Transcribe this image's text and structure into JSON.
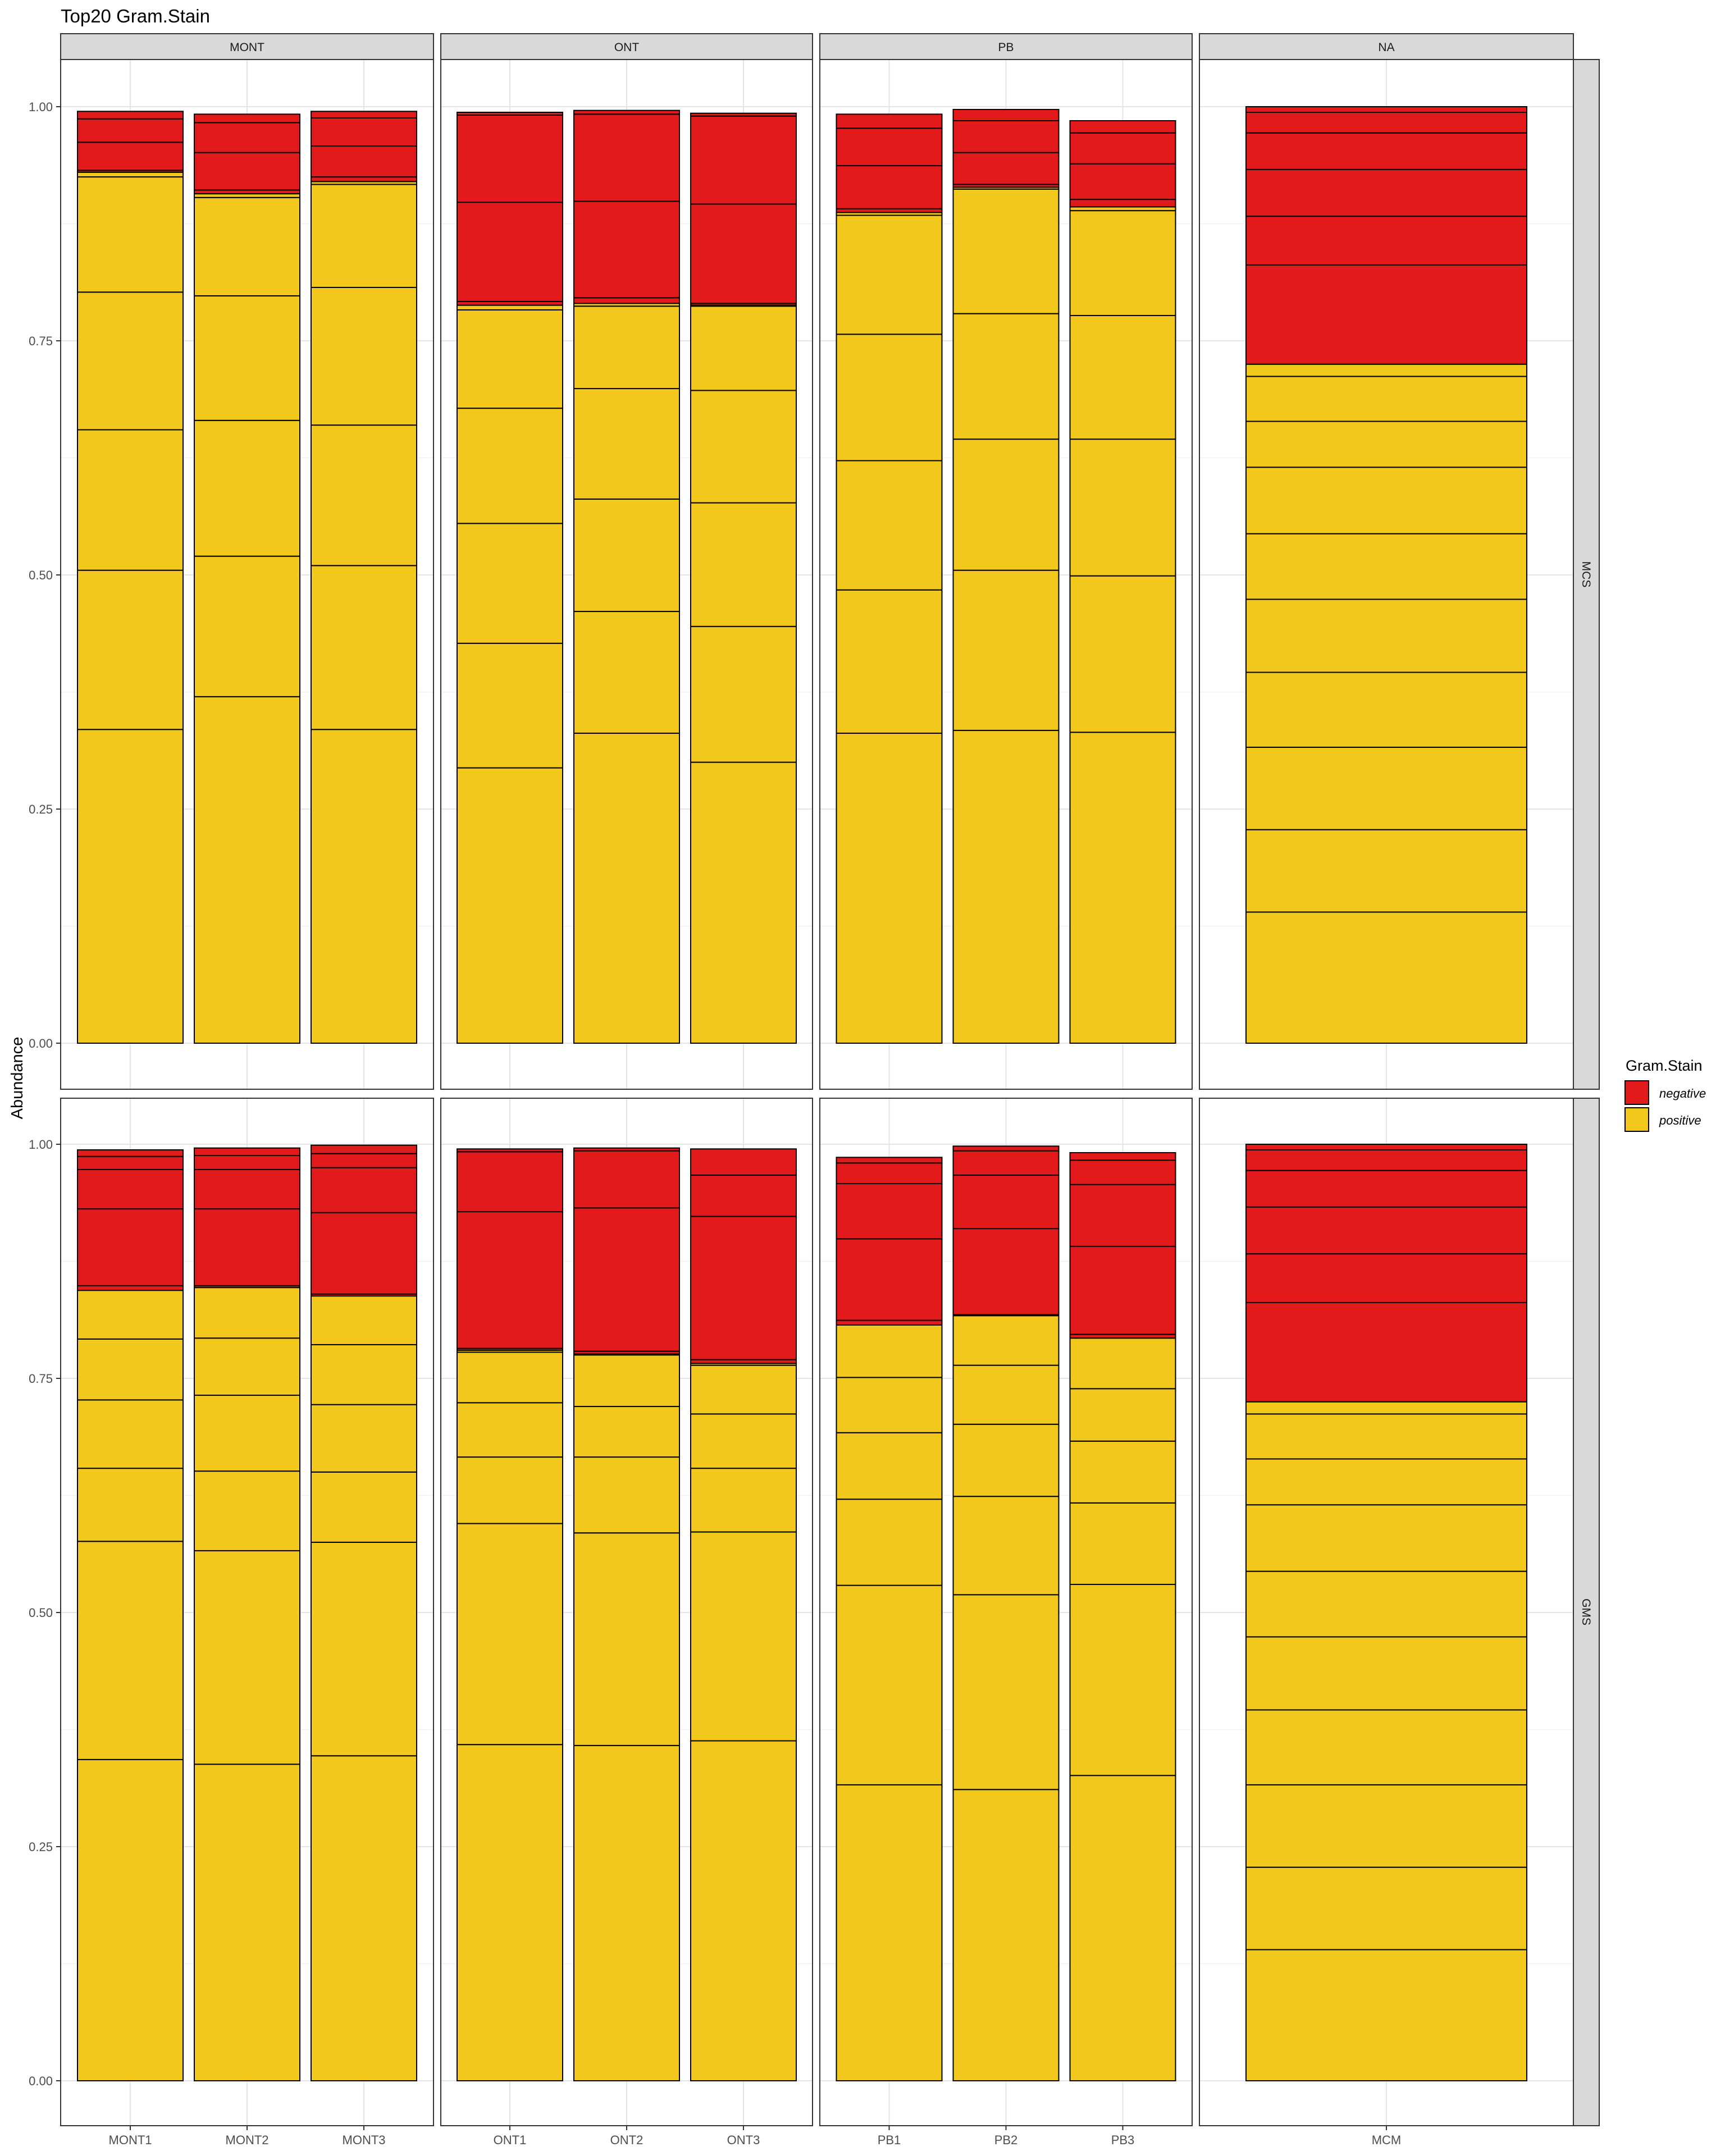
{
  "chart_data": {
    "type": "bar",
    "stacked": true,
    "title": "Top20 Gram.Stain",
    "ylabel": "Abundance",
    "xlabel": "",
    "ylim": [
      0,
      1
    ],
    "yticks": [
      "0.00",
      "0.25",
      "0.50",
      "0.75",
      "1.00"
    ],
    "grid": true,
    "legend_position": "right",
    "legend": {
      "title": "Gram.Stain",
      "entries": [
        {
          "key": "negative",
          "label": "negative",
          "color": "#E31A1C"
        },
        {
          "key": "positive",
          "label": "positive",
          "color": "#F2C81C"
        }
      ]
    },
    "col_facets": [
      {
        "label": "MONT",
        "samples": [
          "MONT1",
          "MONT2",
          "MONT3"
        ]
      },
      {
        "label": "ONT",
        "samples": [
          "ONT1",
          "ONT2",
          "ONT3"
        ]
      },
      {
        "label": "PB",
        "samples": [
          "PB1",
          "PB2",
          "PB3"
        ]
      },
      {
        "label": "NA",
        "samples": [
          "MCM"
        ]
      }
    ],
    "row_facets": [
      {
        "label": "MCS",
        "bars": {
          "MONT1": {
            "pos": [
              0.335,
              0.17,
              0.15,
              0.147,
              0.123,
              0.005
            ],
            "neg": [
              0.002,
              0.03,
              0.025,
              0.008
            ]
          },
          "MONT2": {
            "pos": [
              0.37,
              0.15,
              0.145,
              0.133,
              0.105,
              0.004
            ],
            "neg": [
              0.004,
              0.04,
              0.032,
              0.009
            ]
          },
          "MONT3": {
            "pos": [
              0.335,
              0.175,
              0.15,
              0.147,
              0.11,
              0.003
            ],
            "neg": [
              0.005,
              0.033,
              0.03,
              0.007
            ]
          },
          "ONT1": {
            "pos": [
              0.294,
              0.133,
              0.128,
              0.123,
              0.105,
              0.005
            ],
            "neg": [
              0.004,
              0.106,
              0.093,
              0.003
            ]
          },
          "ONT2": {
            "pos": [
              0.331,
              0.13,
              0.12,
              0.118,
              0.088,
              0.003
            ],
            "neg": [
              0.006,
              0.103,
              0.093,
              0.004
            ]
          },
          "ONT3": {
            "pos": [
              0.3,
              0.145,
              0.132,
              0.12,
              0.09,
              0.001
            ],
            "neg": [
              0.002,
              0.106,
              0.094,
              0.003
            ]
          },
          "PB1": {
            "pos": [
              0.331,
              0.153,
              0.138,
              0.135,
              0.127,
              0.003
            ],
            "neg": [
              0.004,
              0.046,
              0.04,
              0.015
            ]
          },
          "PB2": {
            "pos": [
              0.334,
              0.171,
              0.14,
              0.134,
              0.133,
              0.002
            ],
            "neg": [
              0.003,
              0.034,
              0.034,
              0.012
            ]
          },
          "PB3": {
            "pos": [
              0.332,
              0.167,
              0.146,
              0.132,
              0.112,
              0.004
            ],
            "neg": [
              0.008,
              0.038,
              0.033,
              0.013
            ]
          },
          "MCM": {
            "pos": [
              0.14,
              0.088,
              0.088,
              0.08,
              0.078,
              0.07,
              0.071,
              0.049,
              0.048,
              0.013
            ],
            "neg": [
              0.106,
              0.052,
              0.05,
              0.039,
              0.022,
              0.006
            ]
          }
        }
      },
      {
        "label": "GMS",
        "bars": {
          "MONT1": {
            "pos": [
              0.343,
              0.233,
              0.078,
              0.073,
              0.065,
              0.052
            ],
            "neg": [
              0.005,
              0.082,
              0.042,
              0.014,
              0.007
            ]
          },
          "MONT2": {
            "pos": [
              0.338,
              0.228,
              0.085,
              0.081,
              0.061,
              0.054
            ],
            "neg": [
              0.002,
              0.082,
              0.042,
              0.015,
              0.008
            ]
          },
          "MONT3": {
            "pos": [
              0.347,
              0.228,
              0.075,
              0.072,
              0.064,
              0.052
            ],
            "neg": [
              0.002,
              0.087,
              0.048,
              0.015,
              0.009
            ]
          },
          "ONT1": {
            "pos": [
              0.359,
              0.236,
              0.071,
              0.058,
              0.054,
              0.002
            ],
            "neg": [
              0.002,
              0.146,
              0.064,
              0.003
            ]
          },
          "ONT2": {
            "pos": [
              0.358,
              0.227,
              0.081,
              0.054,
              0.055,
              0.001
            ],
            "neg": [
              0.003,
              0.153,
              0.061,
              0.003
            ]
          },
          "ONT3": {
            "pos": [
              0.363,
              0.223,
              0.068,
              0.058,
              0.052,
              0.002
            ],
            "neg": [
              0.004,
              0.153,
              0.044,
              0.028
            ]
          },
          "PB1": {
            "pos": [
              0.316,
              0.213,
              0.092,
              0.071,
              0.059,
              0.056
            ],
            "neg": [
              0.005,
              0.087,
              0.059,
              0.022,
              0.006
            ]
          },
          "PB2": {
            "pos": [
              0.311,
              0.208,
              0.105,
              0.077,
              0.063,
              0.053
            ],
            "neg": [
              0.001,
              0.092,
              0.057,
              0.026,
              0.005
            ]
          },
          "PB3": {
            "pos": [
              0.326,
              0.204,
              0.087,
              0.066,
              0.056,
              0.054
            ],
            "neg": [
              0.004,
              0.094,
              0.066,
              0.026,
              0.008
            ]
          },
          "MCM": {
            "pos": [
              0.14,
              0.088,
              0.088,
              0.08,
              0.078,
              0.07,
              0.071,
              0.049,
              0.048,
              0.013
            ],
            "neg": [
              0.106,
              0.052,
              0.05,
              0.039,
              0.022,
              0.006
            ]
          }
        }
      }
    ]
  }
}
